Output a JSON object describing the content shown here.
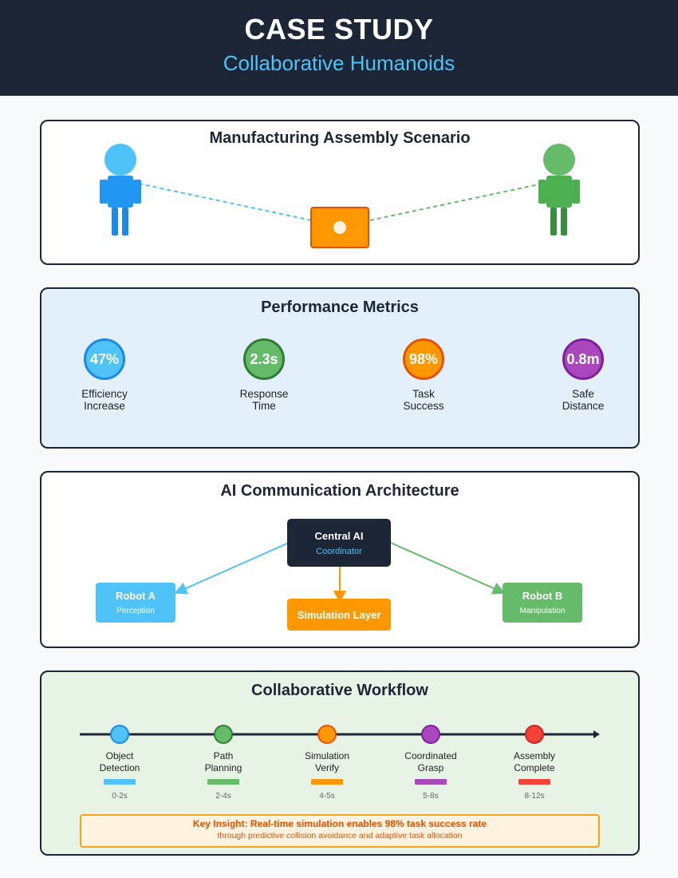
{
  "header": {
    "title": "CASE STUDY",
    "subtitle": "Collaborative Humanoids"
  },
  "scenario": {
    "title": "Manufacturing Assembly Scenario",
    "colors": {
      "robot_a": "#2196f3",
      "robot_a_head": "#4fc3f7",
      "robot_b": "#43a047",
      "robot_b_head": "#66bb6a",
      "object": "#ff9800"
    }
  },
  "metrics": {
    "title": "Performance Metrics",
    "items": [
      {
        "value": "47%",
        "label_line1": "Efficiency",
        "label_line2": "Increase",
        "color": "#4fc3f7",
        "border": "#1e88e5"
      },
      {
        "value": "2.3s",
        "label_line1": "Response",
        "label_line2": "Time",
        "color": "#66bb6a",
        "border": "#2e7d32"
      },
      {
        "value": "98%",
        "label_line1": "Task",
        "label_line2": "Success",
        "color": "#ff9800",
        "border": "#e65100"
      },
      {
        "value": "0.8m",
        "label_line1": "Safe",
        "label_line2": "Distance",
        "color": "#ab47bc",
        "border": "#7b1fa2"
      }
    ]
  },
  "architecture": {
    "title": "AI Communication Architecture",
    "central": {
      "title": "Central AI",
      "subtitle": "Coordinator"
    },
    "robot_a": {
      "title": "Robot A",
      "subtitle": "Perception"
    },
    "robot_b": {
      "title": "Robot B",
      "subtitle": "Manipulation"
    },
    "simulation": {
      "title": "Simulation Layer"
    }
  },
  "workflow": {
    "title": "Collaborative Workflow",
    "steps": [
      {
        "line1": "Object",
        "line2": "Detection",
        "time": "0-2s",
        "color": "#4fc3f7",
        "border": "#1e88e5"
      },
      {
        "line1": "Path",
        "line2": "Planning",
        "time": "2-4s",
        "color": "#66bb6a",
        "border": "#2e7d32"
      },
      {
        "line1": "Simulation",
        "line2": "Verify",
        "time": "4-5s",
        "color": "#ff9800",
        "border": "#e65100"
      },
      {
        "line1": "Coordinated",
        "line2": "Grasp",
        "time": "5-8s",
        "color": "#ab47bc",
        "border": "#7b1fa2"
      },
      {
        "line1": "Assembly",
        "line2": "Complete",
        "time": "8-12s",
        "color": "#f44336",
        "border": "#c62828"
      }
    ],
    "insight": {
      "line1": "Key Insight: Real-time simulation enables 98% task success rate",
      "line2": "through predictive collision avoidance and adaptive task allocation"
    }
  }
}
